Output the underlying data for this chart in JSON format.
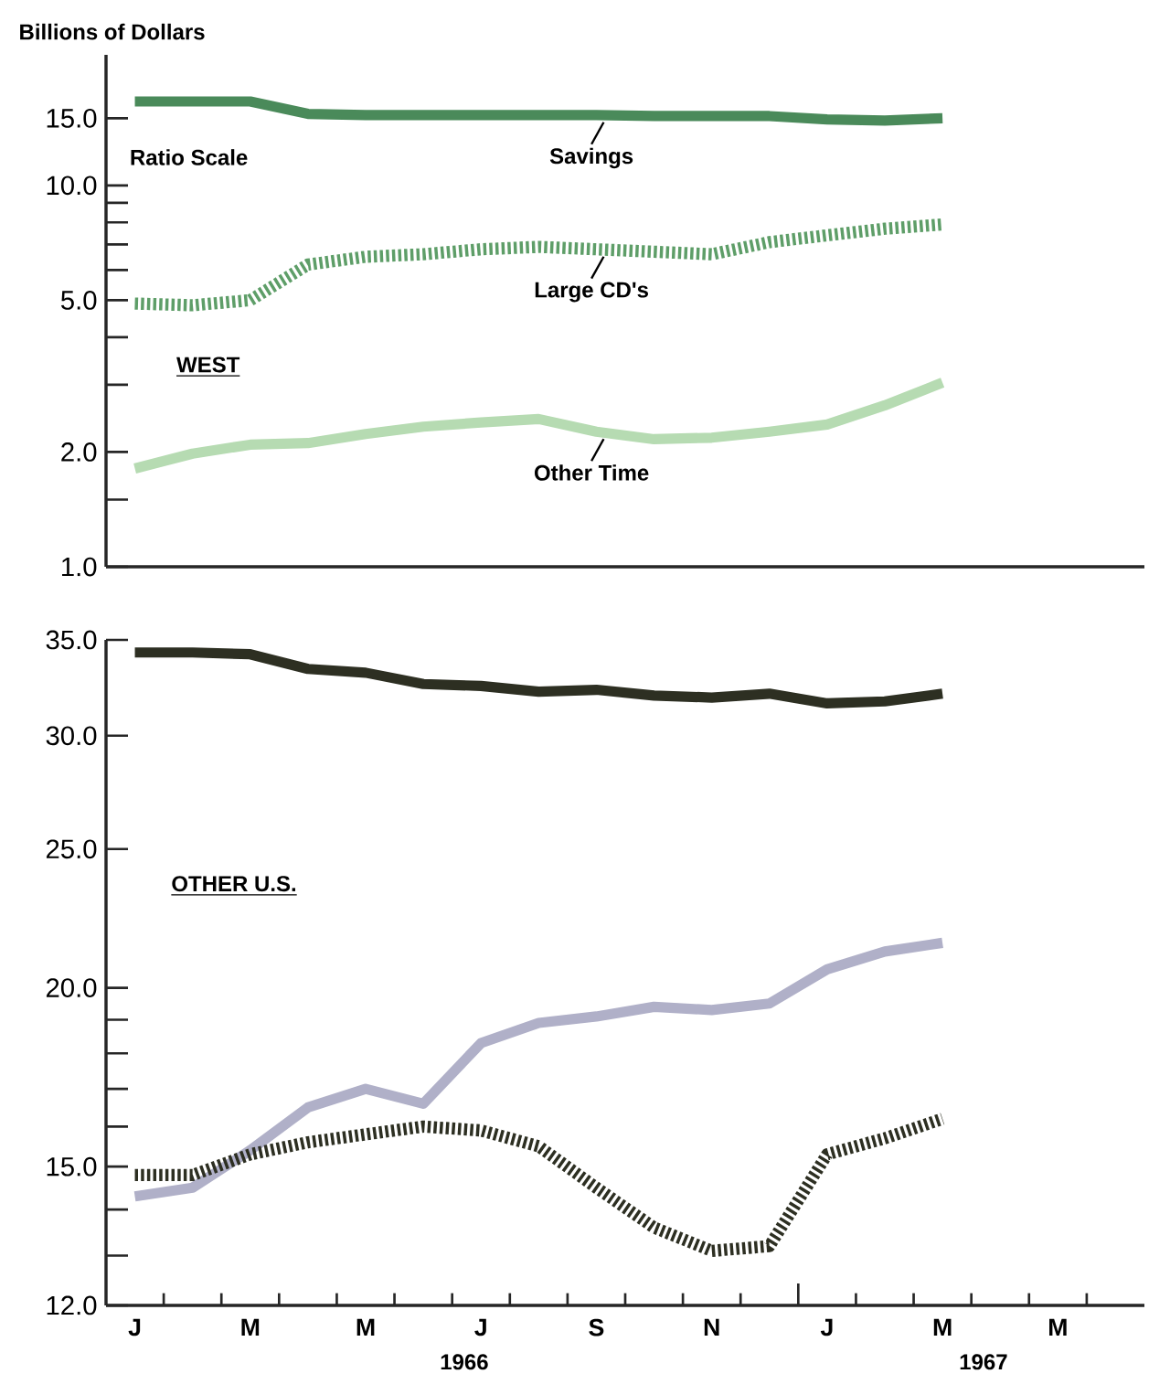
{
  "chart_data": [
    {
      "type": "line",
      "ylabel": "Billions of Dollars",
      "annotations": [
        "Ratio Scale",
        "WEST"
      ],
      "categories": [
        null,
        null,
        null,
        null,
        null,
        null,
        null,
        null,
        null,
        null,
        null,
        null,
        null,
        null,
        null,
        null,
        null,
        null
      ],
      "series": [
        {
          "name": "Savings",
          "color": "#4a8a5a",
          "line_style": "solid",
          "values": [
            16.6,
            16.6,
            16.6,
            15.4,
            15.3,
            15.3,
            15.3,
            15.3,
            15.3,
            15.2,
            15.2,
            15.2,
            14.9,
            14.8,
            15.0,
            null,
            null,
            null
          ]
        },
        {
          "name": "Large CD's",
          "color": "#5e9e68",
          "line_style": "dashed",
          "values": [
            4.9,
            4.85,
            5.0,
            6.2,
            6.5,
            6.6,
            6.8,
            6.9,
            6.8,
            6.7,
            6.6,
            7.1,
            7.4,
            7.7,
            7.9,
            null,
            null,
            null
          ]
        },
        {
          "name": "Other Time",
          "color": "#b6dbb2",
          "line_style": "solid",
          "values": [
            1.81,
            1.98,
            2.09,
            2.11,
            2.23,
            2.33,
            2.39,
            2.44,
            2.26,
            2.16,
            2.18,
            2.26,
            2.36,
            2.65,
            3.04,
            null,
            null,
            null
          ]
        }
      ],
      "log": "y",
      "ylim": [
        1,
        22
      ],
      "yticks": [
        {
          "value": 1,
          "label": "1.0"
        },
        {
          "value": 1.5,
          "label": null
        },
        {
          "value": 2,
          "label": "2.0"
        },
        {
          "value": 3,
          "label": null
        },
        {
          "value": 4,
          "label": null
        },
        {
          "value": 5,
          "label": "5.0"
        },
        {
          "value": 6,
          "label": null
        },
        {
          "value": 7,
          "label": null
        },
        {
          "value": 8,
          "label": null
        },
        {
          "value": 9,
          "label": null
        },
        {
          "value": 10,
          "label": "10.0"
        },
        {
          "value": 15,
          "label": "15.0"
        }
      ],
      "tick_labels": "y",
      "grid": false,
      "marker": "none"
    },
    {
      "type": "line",
      "annotations": [
        "OTHER U.S.",
        "1966",
        "1967"
      ],
      "categories": [
        "J",
        null,
        "M",
        null,
        "M",
        null,
        "J",
        null,
        "S",
        null,
        "N",
        null,
        "J",
        null,
        "M",
        null,
        "M",
        null
      ],
      "series": [
        {
          "color": "#2d2f22",
          "line_style": "solid",
          "values": [
            34.3,
            34.3,
            34.2,
            33.4,
            33.2,
            32.6,
            32.5,
            32.2,
            32.3,
            32.0,
            31.9,
            32.1,
            31.6,
            31.7,
            32.1,
            null,
            null,
            null
          ]
        },
        {
          "color": "#b0b0c8",
          "line_style": "solid",
          "values": [
            14.3,
            14.5,
            15.4,
            16.5,
            17.0,
            16.6,
            18.3,
            18.9,
            19.1,
            19.4,
            19.3,
            19.5,
            20.6,
            21.2,
            21.5,
            null,
            null,
            null
          ]
        },
        {
          "color": "#2d2f22",
          "line_style": "dashed",
          "values": [
            14.8,
            14.8,
            15.3,
            15.6,
            15.8,
            16.0,
            15.9,
            15.5,
            14.5,
            13.6,
            13.1,
            13.2,
            15.3,
            15.7,
            16.2,
            null,
            null,
            null
          ]
        }
      ],
      "log": "y",
      "ylim": [
        12,
        35
      ],
      "yticks": [
        {
          "value": 12,
          "label": "12.0"
        },
        {
          "value": 13,
          "label": null
        },
        {
          "value": 14,
          "label": null
        },
        {
          "value": 15,
          "label": "15.0"
        },
        {
          "value": 16,
          "label": null
        },
        {
          "value": 17,
          "label": null
        },
        {
          "value": 18,
          "label": null
        },
        {
          "value": 19,
          "label": null
        },
        {
          "value": 20,
          "label": "20.0"
        },
        {
          "value": 25,
          "label": "25.0"
        },
        {
          "value": 30,
          "label": "30.0"
        },
        {
          "value": 35,
          "label": "35.0"
        }
      ],
      "grid": false,
      "marker": "none"
    }
  ]
}
